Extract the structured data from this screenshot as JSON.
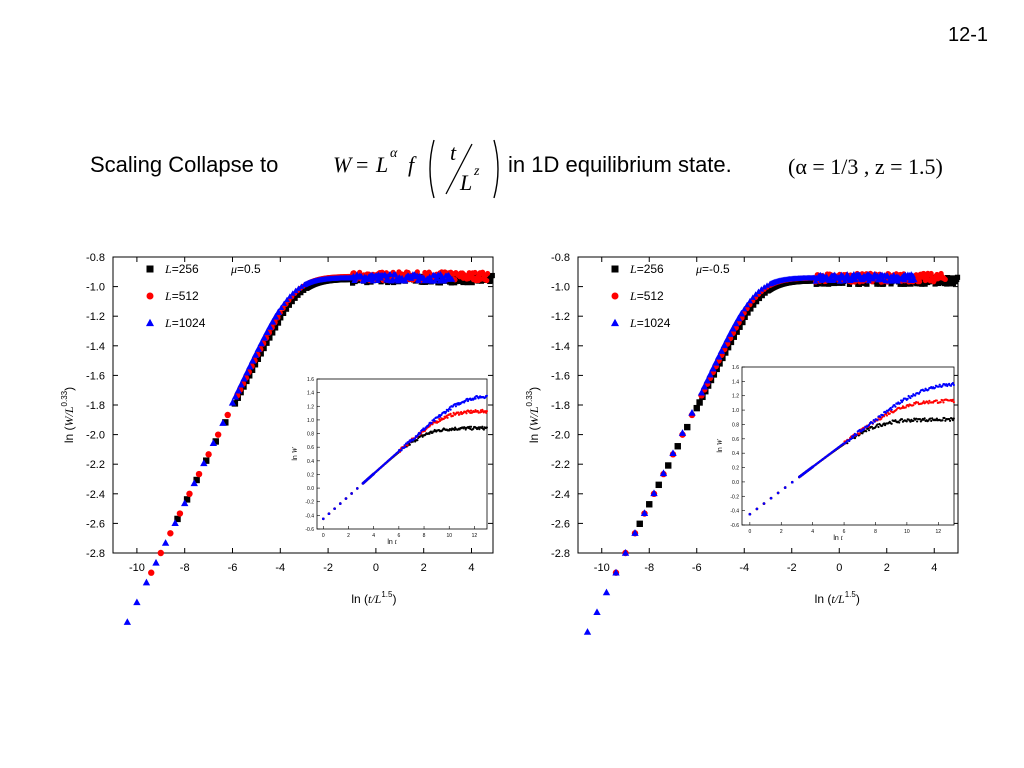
{
  "slide_number": "12-1",
  "title": {
    "prefix": "Scaling Collapse to",
    "eq_W": "W",
    "eq_eq": "=",
    "eq_L": "L",
    "eq_alpha": "α",
    "eq_f": "f",
    "eq_t": "t",
    "eq_L2": "L",
    "eq_z": "z",
    "suffix": "in 1D equilibrium state.",
    "params": "(α = 1/3 , z = 1.5)"
  },
  "colors": {
    "L256": "#000000",
    "L512": "#ff0000",
    "L1024": "#0000ff"
  },
  "chart_data": [
    {
      "type": "scatter",
      "legend": [
        {
          "prefix": "L",
          "value": "=256",
          "marker": "square",
          "color": "#000000"
        },
        {
          "prefix": "L",
          "value": "=512",
          "marker": "circle",
          "color": "#ff0000"
        },
        {
          "prefix": "L",
          "value": "=1024",
          "marker": "triangle",
          "color": "#0000ff"
        }
      ],
      "annotation": {
        "symbol": "μ",
        "value": "=0.5"
      },
      "xlabel": {
        "pre": "ln (",
        "var": "t/L",
        "exp": "1.5",
        "post": ")"
      },
      "ylabel": {
        "pre": "ln (",
        "var": "W/L",
        "exp": "0.33",
        "post": ")"
      },
      "xlim": [
        -11,
        4.9
      ],
      "ylim": [
        -2.8,
        -0.8
      ],
      "xticks": [
        "-10",
        "-8",
        "-6",
        "-4",
        "-2",
        "0",
        "2",
        "4"
      ],
      "yticks": [
        "-0.8",
        "-1.0",
        "-1.2",
        "-1.4",
        "-1.6",
        "-1.8",
        "-2.0",
        "-2.2",
        "-2.4",
        "-2.6",
        "-2.8"
      ],
      "series": [
        {
          "name": "L=256",
          "plateau": -0.95,
          "x_min": -8.3,
          "x_max": 4.9
        },
        {
          "name": "L=512",
          "plateau": -0.93,
          "x_min": -9.4,
          "x_max": 4.7
        },
        {
          "name": "L=1024",
          "plateau": -0.94,
          "x_min": -10.4,
          "x_max": 3.2
        }
      ],
      "inset": {
        "xlabel": {
          "pre": "ln ",
          "var": "t"
        },
        "ylabel": {
          "pre": "ln ",
          "var": "W"
        },
        "xlim": [
          -0.5,
          13
        ],
        "ylim": [
          -0.6,
          1.6
        ],
        "xticks": [
          "0",
          "2",
          "4",
          "6",
          "8",
          "10",
          "12"
        ],
        "yticks": [
          "1.6",
          "1.4",
          "1.2",
          "1.0",
          "0.8",
          "0.6",
          "0.4",
          "0.2",
          "0.0",
          "-0.2",
          "-0.4",
          "-0.6"
        ],
        "plateaus": [
          0.88,
          1.13,
          1.36
        ]
      }
    },
    {
      "type": "scatter",
      "legend": [
        {
          "prefix": "L",
          "value": "=256",
          "marker": "square",
          "color": "#000000"
        },
        {
          "prefix": "L",
          "value": "=512",
          "marker": "circle",
          "color": "#ff0000"
        },
        {
          "prefix": "L",
          "value": "=1024",
          "marker": "triangle",
          "color": "#0000ff"
        }
      ],
      "annotation": {
        "symbol": "μ",
        "value": "=-0.5"
      },
      "xlabel": {
        "pre": "ln (",
        "var": "t/L",
        "exp": "1.5",
        "post": ")"
      },
      "ylabel": {
        "pre": "ln (",
        "var": "W/L",
        "exp": "0.33",
        "post": ")"
      },
      "xlim": [
        -11,
        5
      ],
      "ylim": [
        -2.8,
        -0.8
      ],
      "xticks": [
        "-10",
        "-8",
        "-6",
        "-4",
        "-2",
        "0",
        "2",
        "4"
      ],
      "yticks": [
        "-0.8",
        "-1.0",
        "-1.2",
        "-1.4",
        "-1.6",
        "-1.8",
        "-2.0",
        "-2.2",
        "-2.4",
        "-2.6",
        "-2.8"
      ],
      "series": [
        {
          "name": "L=256",
          "plateau": -0.96,
          "x_min": -8.4,
          "x_max": 5
        },
        {
          "name": "L=512",
          "plateau": -0.94,
          "x_min": -9.4,
          "x_max": 4.5
        },
        {
          "name": "L=1024",
          "plateau": -0.94,
          "x_min": -10.6,
          "x_max": 3.2
        }
      ],
      "inset": {
        "xlabel": {
          "pre": "ln ",
          "var": "t"
        },
        "ylabel": {
          "pre": "ln ",
          "var": "W"
        },
        "xlim": [
          -0.5,
          13
        ],
        "ylim": [
          -0.6,
          1.6
        ],
        "xticks": [
          "0",
          "2",
          "4",
          "6",
          "8",
          "10",
          "12"
        ],
        "yticks": [
          "1.6",
          "1.4",
          "1.2",
          "1.0",
          "0.8",
          "0.6",
          "0.4",
          "0.2",
          "0.0",
          "-0.2",
          "-0.4",
          "-0.6"
        ],
        "plateaus": [
          0.87,
          1.13,
          1.37
        ]
      }
    }
  ]
}
